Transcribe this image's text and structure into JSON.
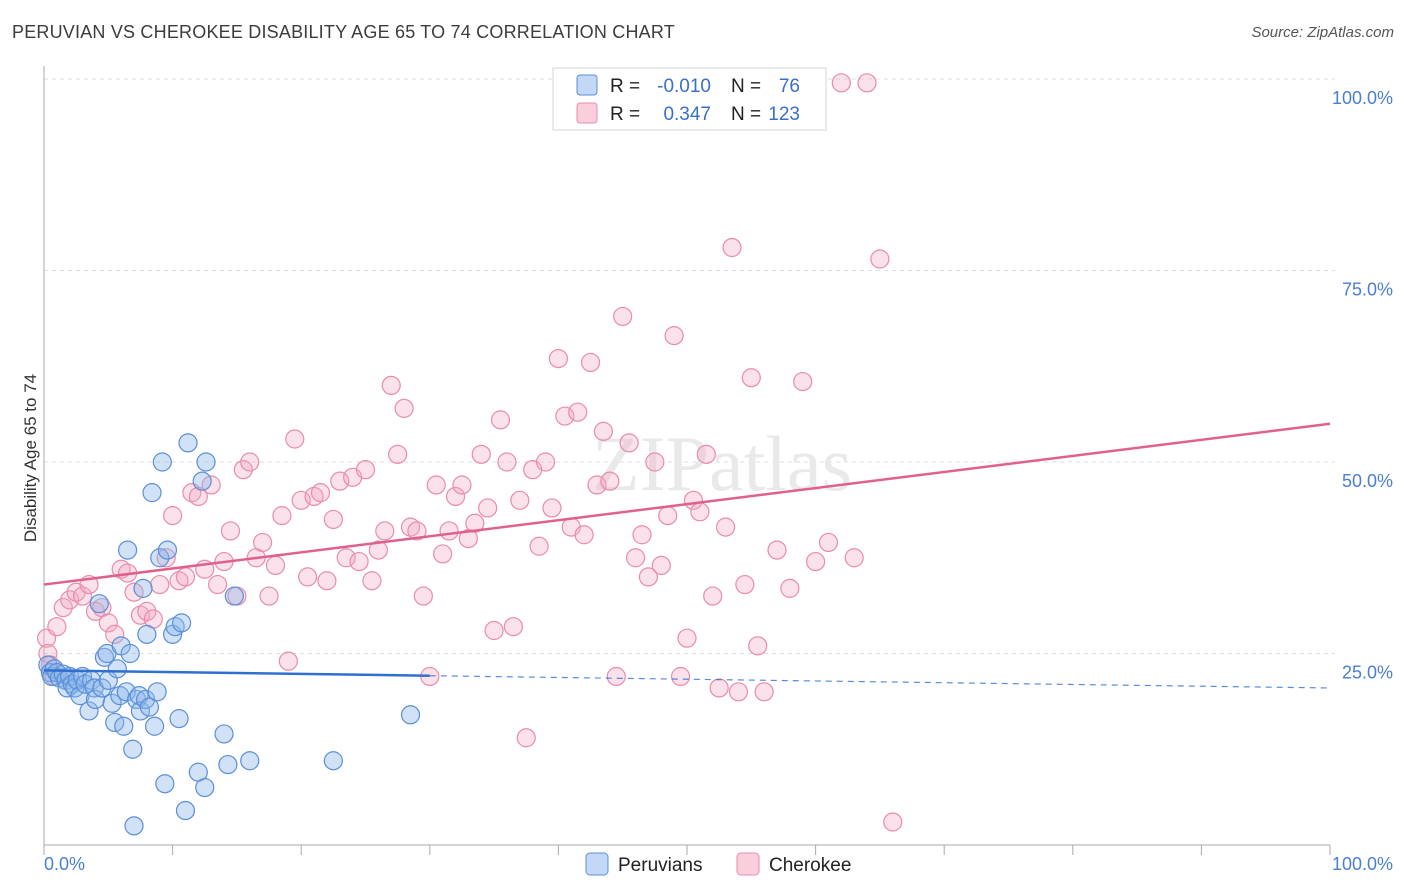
{
  "title": "PERUVIAN VS CHEROKEE DISABILITY AGE 65 TO 74 CORRELATION CHART",
  "source": "Source: ZipAtlas.com",
  "watermark": "ZIPatlas",
  "colors": {
    "blue": "#8db7ea",
    "blue_stroke": "#5a8fd8",
    "blue_line": "#2f6fcf",
    "pink": "#f4a9c0",
    "pink_stroke": "#ea8bab",
    "pink_line": "#e0608a",
    "tick_label": "#4a7fd0",
    "grid": "#dedede"
  },
  "chart_data": {
    "type": "scatter",
    "xlabel": "",
    "ylabel": "Disability Age 65 to 74",
    "xlim": [
      0,
      100
    ],
    "ylim": [
      0,
      100
    ],
    "x_tick_labels": [
      "0.0%",
      "100.0%"
    ],
    "y_ticks": [
      25,
      50,
      75,
      100
    ],
    "y_tick_labels": [
      "25.0%",
      "50.0%",
      "75.0%",
      "100.0%"
    ],
    "legend": {
      "rows": [
        {
          "r_label": "R =",
          "r_value": "-0.010",
          "n_label": "N =",
          "n_value": "76"
        },
        {
          "r_label": "R =",
          "r_value": "0.347",
          "n_label": "N =",
          "n_value": "123"
        }
      ]
    },
    "series": [
      {
        "name": "Peruvians",
        "trend": {
          "x0": 0,
          "y0": 22.8,
          "x1": 30,
          "y1": 22.1,
          "dash_x1": 100,
          "dash_y1": 20.5
        },
        "points": [
          [
            0.3,
            23.5
          ],
          [
            0.5,
            22.5
          ],
          [
            0.6,
            22.0
          ],
          [
            0.8,
            23.0
          ],
          [
            1.0,
            22.5
          ],
          [
            1.2,
            21.8
          ],
          [
            1.5,
            22.3
          ],
          [
            1.7,
            21.5
          ],
          [
            1.8,
            20.5
          ],
          [
            2.0,
            22.0
          ],
          [
            2.2,
            21.0
          ],
          [
            2.4,
            20.5
          ],
          [
            2.6,
            21.5
          ],
          [
            2.8,
            19.5
          ],
          [
            3.0,
            22.0
          ],
          [
            3.2,
            21.0
          ],
          [
            3.5,
            17.5
          ],
          [
            3.7,
            21.5
          ],
          [
            3.9,
            20.5
          ],
          [
            4.0,
            19.0
          ],
          [
            4.3,
            31.5
          ],
          [
            4.5,
            20.5
          ],
          [
            4.7,
            24.5
          ],
          [
            4.9,
            25.0
          ],
          [
            5.0,
            21.5
          ],
          [
            5.3,
            18.5
          ],
          [
            5.5,
            16.0
          ],
          [
            5.7,
            23.0
          ],
          [
            5.9,
            19.5
          ],
          [
            6.0,
            26.0
          ],
          [
            6.2,
            15.5
          ],
          [
            6.4,
            20.0
          ],
          [
            6.5,
            38.5
          ],
          [
            6.7,
            25.0
          ],
          [
            6.9,
            12.5
          ],
          [
            7.0,
            2.5
          ],
          [
            7.2,
            19.0
          ],
          [
            7.4,
            19.5
          ],
          [
            7.5,
            17.5
          ],
          [
            7.7,
            33.5
          ],
          [
            7.9,
            19.0
          ],
          [
            8.0,
            27.5
          ],
          [
            8.2,
            18.0
          ],
          [
            8.4,
            46.0
          ],
          [
            8.6,
            15.5
          ],
          [
            8.8,
            20.0
          ],
          [
            9.0,
            37.5
          ],
          [
            9.2,
            50.0
          ],
          [
            9.4,
            8.0
          ],
          [
            9.6,
            38.5
          ],
          [
            10.0,
            27.5
          ],
          [
            10.2,
            28.5
          ],
          [
            10.5,
            16.5
          ],
          [
            10.7,
            29.0
          ],
          [
            11.0,
            4.5
          ],
          [
            11.2,
            52.5
          ],
          [
            12.0,
            9.5
          ],
          [
            12.3,
            47.5
          ],
          [
            12.6,
            50.0
          ],
          [
            12.5,
            7.5
          ],
          [
            14.0,
            14.5
          ],
          [
            14.3,
            10.5
          ],
          [
            14.8,
            32.5
          ],
          [
            16.0,
            11.0
          ],
          [
            22.5,
            11.0
          ],
          [
            28.5,
            17.0
          ]
        ]
      },
      {
        "name": "Cherokee",
        "trend": {
          "x0": 0,
          "y0": 34.0,
          "x1": 100,
          "y1": 55.0
        },
        "points": [
          [
            0.2,
            27.0
          ],
          [
            0.3,
            25.0
          ],
          [
            0.5,
            23.5
          ],
          [
            0.8,
            22.0
          ],
          [
            1.0,
            28.5
          ],
          [
            1.5,
            31.0
          ],
          [
            2.0,
            32.0
          ],
          [
            2.5,
            33.0
          ],
          [
            3.0,
            32.5
          ],
          [
            3.5,
            34.0
          ],
          [
            4.0,
            30.5
          ],
          [
            4.5,
            31.0
          ],
          [
            5.0,
            29.0
          ],
          [
            5.5,
            27.5
          ],
          [
            6.0,
            36.0
          ],
          [
            6.5,
            35.5
          ],
          [
            7.0,
            33.0
          ],
          [
            7.5,
            30.0
          ],
          [
            8.0,
            30.5
          ],
          [
            8.5,
            29.5
          ],
          [
            9.0,
            34.0
          ],
          [
            9.5,
            37.5
          ],
          [
            10.0,
            43.0
          ],
          [
            10.5,
            34.5
          ],
          [
            11.0,
            35.0
          ],
          [
            11.5,
            46.0
          ],
          [
            12.0,
            45.5
          ],
          [
            12.5,
            36.0
          ],
          [
            13.0,
            47.0
          ],
          [
            13.5,
            34.0
          ],
          [
            14.0,
            37.0
          ],
          [
            14.5,
            41.0
          ],
          [
            15.0,
            32.5
          ],
          [
            15.5,
            49.0
          ],
          [
            16.0,
            50.0
          ],
          [
            16.5,
            37.5
          ],
          [
            17.0,
            39.5
          ],
          [
            17.5,
            32.5
          ],
          [
            18.0,
            36.5
          ],
          [
            18.5,
            43.0
          ],
          [
            19.0,
            24.0
          ],
          [
            19.5,
            53.0
          ],
          [
            20.0,
            45.0
          ],
          [
            20.5,
            35.0
          ],
          [
            21.0,
            45.5
          ],
          [
            21.5,
            46.0
          ],
          [
            22.0,
            34.5
          ],
          [
            22.5,
            42.5
          ],
          [
            23.0,
            47.5
          ],
          [
            23.5,
            37.5
          ],
          [
            24.0,
            48.0
          ],
          [
            24.5,
            37.0
          ],
          [
            25.0,
            49.0
          ],
          [
            25.5,
            34.5
          ],
          [
            26.0,
            38.5
          ],
          [
            26.5,
            41.0
          ],
          [
            27.0,
            60.0
          ],
          [
            27.5,
            51.0
          ],
          [
            28.0,
            57.0
          ],
          [
            28.5,
            41.5
          ],
          [
            29.0,
            41.0
          ],
          [
            29.5,
            32.5
          ],
          [
            30.0,
            22.0
          ],
          [
            30.5,
            47.0
          ],
          [
            31.0,
            38.0
          ],
          [
            31.5,
            41.0
          ],
          [
            32.0,
            45.5
          ],
          [
            32.5,
            47.0
          ],
          [
            33.0,
            40.0
          ],
          [
            33.5,
            42.0
          ],
          [
            34.0,
            51.0
          ],
          [
            34.5,
            44.0
          ],
          [
            35.0,
            28.0
          ],
          [
            35.5,
            55.5
          ],
          [
            36.0,
            50.0
          ],
          [
            36.5,
            28.5
          ],
          [
            37.0,
            45.0
          ],
          [
            37.5,
            14.0
          ],
          [
            38.0,
            49.0
          ],
          [
            38.5,
            39.0
          ],
          [
            39.0,
            50.0
          ],
          [
            39.5,
            44.0
          ],
          [
            40.0,
            63.5
          ],
          [
            40.5,
            56.0
          ],
          [
            41.0,
            41.5
          ],
          [
            41.5,
            56.5
          ],
          [
            42.0,
            40.5
          ],
          [
            42.5,
            63.0
          ],
          [
            43.0,
            47.0
          ],
          [
            43.5,
            54.0
          ],
          [
            44.0,
            47.5
          ],
          [
            44.5,
            22.0
          ],
          [
            45.0,
            69.0
          ],
          [
            45.5,
            52.5
          ],
          [
            46.0,
            37.5
          ],
          [
            46.5,
            40.5
          ],
          [
            47.0,
            35.0
          ],
          [
            47.5,
            50.0
          ],
          [
            48.0,
            36.5
          ],
          [
            48.5,
            43.0
          ],
          [
            49.0,
            66.5
          ],
          [
            49.5,
            22.0
          ],
          [
            50.0,
            27.0
          ],
          [
            50.5,
            45.0
          ],
          [
            51.0,
            43.5
          ],
          [
            51.5,
            51.0
          ],
          [
            52.0,
            32.5
          ],
          [
            52.5,
            20.5
          ],
          [
            53.0,
            41.5
          ],
          [
            53.5,
            78.0
          ],
          [
            54.0,
            20.0
          ],
          [
            54.5,
            34.0
          ],
          [
            55.0,
            61.0
          ],
          [
            55.5,
            26.0
          ],
          [
            56.0,
            20.0
          ],
          [
            57.0,
            38.5
          ],
          [
            58.0,
            33.5
          ],
          [
            59.0,
            60.5
          ],
          [
            60.0,
            37.0
          ],
          [
            61.0,
            39.5
          ],
          [
            62.0,
            99.5
          ],
          [
            63.0,
            37.5
          ],
          [
            64.0,
            99.5
          ],
          [
            65.0,
            76.5
          ],
          [
            66.0,
            3.0
          ]
        ]
      }
    ],
    "bottom_legend": [
      "Peruvians",
      "Cherokee"
    ]
  }
}
